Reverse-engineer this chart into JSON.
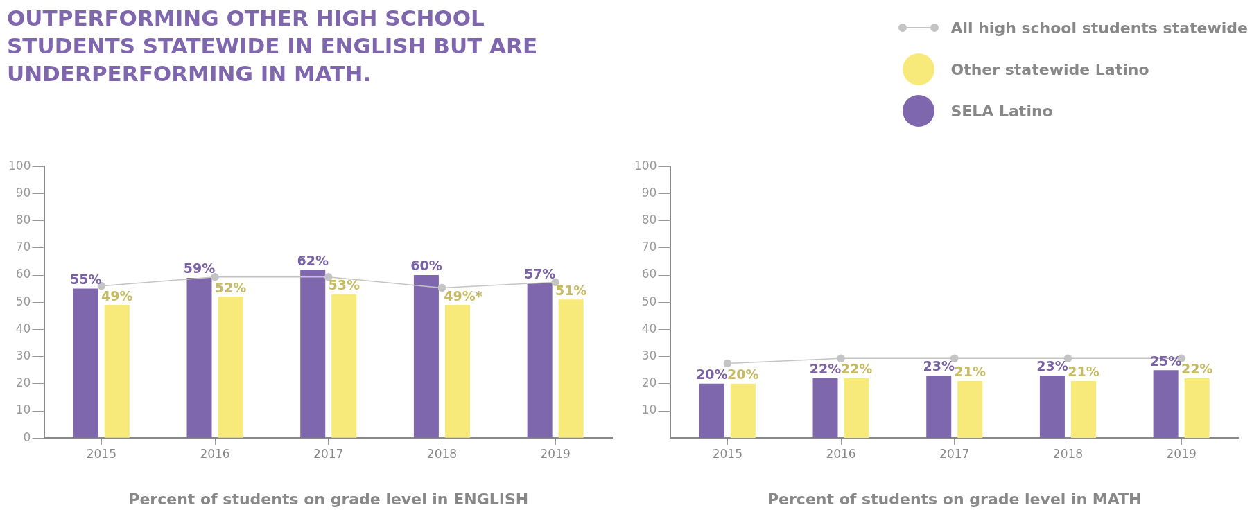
{
  "chart_data": [
    {
      "type": "bar",
      "title": "OUTPERFORMING OTHER HIGH SCHOOL STUDENTS STATEWIDE IN ENGLISH BUT ARE UNDERPERFORMING IN MATH.",
      "xlabel": "Percent of students on grade level in ENGLISH",
      "categories": [
        "2015",
        "2016",
        "2017",
        "2018",
        "2019"
      ],
      "series": [
        {
          "name": "All high school students statewide",
          "type": "line",
          "color": "#c4c4c4",
          "values": [
            56,
            59.3,
            59.3,
            55.3,
            57.4
          ]
        },
        {
          "name": "Other statewide Latino",
          "color": "#f7ea7a",
          "values": [
            49,
            52,
            53,
            49,
            51
          ],
          "value_labels": [
            "49%",
            "52%",
            "53%",
            "49%*",
            "51%"
          ]
        },
        {
          "name": "SELA Latino",
          "color": "#7f67ad",
          "values": [
            55,
            59,
            62,
            60,
            57
          ],
          "value_labels": [
            "55%",
            "59%",
            "62%",
            "60%",
            "57%"
          ]
        }
      ],
      "ylim": [
        0,
        100
      ],
      "yticks": [
        0,
        10,
        20,
        30,
        40,
        50,
        60,
        70,
        80,
        90,
        100
      ],
      "grid": false,
      "legend": "top right",
      "marker": "circle"
    },
    {
      "type": "bar",
      "xlabel": "Percent of students on grade level in MATH",
      "categories": [
        "2015",
        "2016",
        "2017",
        "2018",
        "2019"
      ],
      "series": [
        {
          "name": "All high school students statewide",
          "type": "line",
          "color": "#c4c4c4",
          "values": [
            27.5,
            29.3,
            29.3,
            29.3,
            29.3
          ]
        },
        {
          "name": "Other statewide Latino",
          "color": "#f7ea7a",
          "values": [
            20,
            22,
            21,
            21,
            22
          ],
          "value_labels": [
            "20%",
            "22%",
            "21%",
            "21%",
            "22%"
          ]
        },
        {
          "name": "SELA Latino",
          "color": "#7f67ad",
          "values": [
            20,
            22,
            23,
            23,
            25
          ],
          "value_labels": [
            "20%",
            "22%",
            "23%",
            "23%",
            "25%"
          ]
        }
      ],
      "ylim": [
        0,
        100
      ],
      "yticks": [
        10,
        20,
        30,
        40,
        50,
        60,
        70,
        80,
        90,
        100
      ],
      "grid": false,
      "legend": "top right",
      "marker": "circle"
    }
  ]
}
